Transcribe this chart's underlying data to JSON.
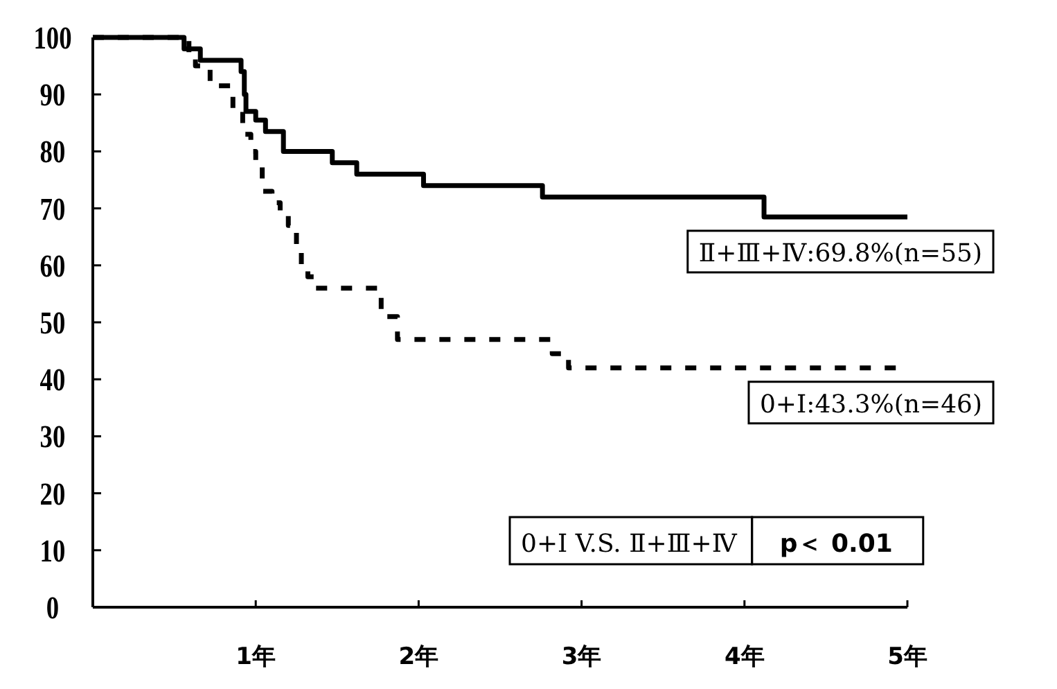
{
  "chart_data": {
    "type": "step",
    "xlim": [
      0,
      5
    ],
    "ylim": [
      0,
      100
    ],
    "xticks": [
      {
        "value": 1,
        "label": "1年"
      },
      {
        "value": 2,
        "label": "2年"
      },
      {
        "value": 3,
        "label": "3年"
      },
      {
        "value": 4,
        "label": "4年"
      },
      {
        "value": 5,
        "label": "5年"
      }
    ],
    "yticks": [
      0,
      10,
      20,
      30,
      40,
      50,
      60,
      70,
      80,
      90,
      100
    ],
    "grid": false,
    "series": [
      {
        "name": "Ⅱ+Ⅲ+Ⅳ:69.8%(n=55)",
        "color": "#000000",
        "line_style": "solid",
        "x": [
          0,
          0.56,
          0.66,
          0.91,
          0.93,
          0.94,
          1.0,
          1.06,
          1.17,
          1.47,
          1.62,
          2.03,
          2.76,
          4.12,
          5.0
        ],
        "values": [
          100,
          98,
          96,
          94,
          90,
          87,
          85.5,
          83.5,
          80,
          78,
          76,
          74,
          72,
          68.5,
          68.5
        ]
      },
      {
        "name": "0+Ⅰ:43.3%(n=46)",
        "color": "#000000",
        "line_style": "dashed",
        "x": [
          0,
          0.59,
          0.63,
          0.72,
          0.86,
          0.92,
          0.97,
          1.0,
          1.04,
          1.1,
          1.15,
          1.2,
          1.25,
          1.28,
          1.32,
          1.37,
          1.43,
          1.77,
          1.87,
          2.82,
          2.92,
          5.0
        ],
        "values": [
          100,
          97,
          95,
          91.5,
          87,
          83,
          80,
          77.5,
          73,
          71,
          69,
          67,
          63,
          60,
          58,
          56,
          56,
          51,
          47,
          44.5,
          42,
          42
        ]
      }
    ],
    "annotations": [
      "0+Ⅰ V.S. Ⅱ+Ⅲ+Ⅳ",
      "p＜ 0.01"
    ]
  }
}
